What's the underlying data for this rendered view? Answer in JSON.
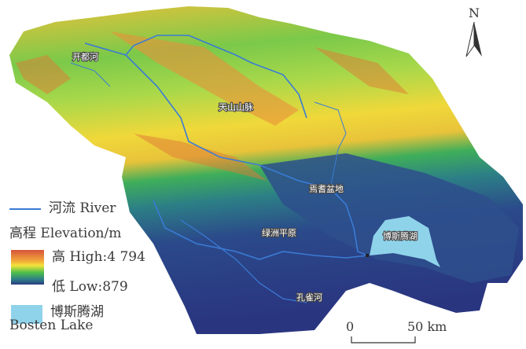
{
  "map": {
    "labels": {
      "kaidu_river": "开都河",
      "tianshan": "天山山脉",
      "yanqi_basin": "焉耆盆地",
      "oasis_plain": "绿洲平原",
      "bosten_lake": "博斯腾湖",
      "kongque_river": "孔雀河"
    },
    "north_arrow": "N",
    "scale_bar": {
      "start": "0",
      "end": "50 km"
    },
    "colors": {
      "high": "#d4543a",
      "mid_high": "#f2e33a",
      "mid": "#4fbf4a",
      "low": "#2b3a80",
      "lake": "#8fd3ea",
      "river": "#3a7bd5"
    }
  },
  "legend": {
    "river": "河流 River",
    "elevation_title": "高程 Elevation/m",
    "high": "高 High:4 794",
    "low": "低 Low:879",
    "lake_cn": "博斯腾湖",
    "lake_en": "Bosten Lake"
  }
}
